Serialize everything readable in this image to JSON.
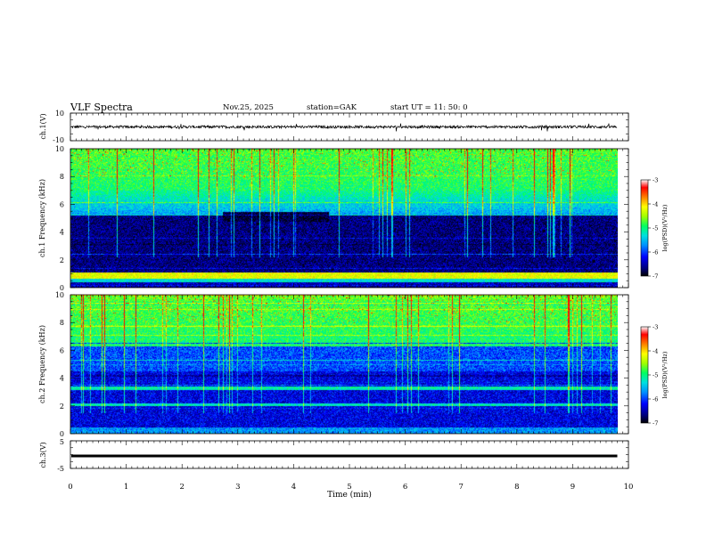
{
  "header": {
    "title": "VLF Spectra",
    "date": "Nov.25, 2025",
    "station": "station=GAK",
    "start_time": "start UT = 11: 50: 0"
  },
  "chart_data": [
    {
      "type": "line",
      "name": "ch1-waveform",
      "ylabel": "ch.1(V)",
      "ylim": [
        -10,
        10
      ],
      "yticks": [
        "10",
        "-10"
      ],
      "xlim": [
        0,
        10
      ],
      "baseline": 0,
      "noise_amplitude": 1.2
    },
    {
      "type": "heatmap",
      "name": "ch1-spectrogram",
      "ylabel": "ch.1 Frequency (kHz)",
      "ylim": [
        0,
        10
      ],
      "yticks": [
        "0",
        "2",
        "4",
        "6",
        "8",
        "10"
      ],
      "xlim": [
        0,
        9.8
      ],
      "colorbar": {
        "label": "log(PSD)(V²/Hz)",
        "range": [
          -7,
          -3
        ],
        "ticks": [
          "-3",
          "-4",
          "-5",
          "-6",
          "-7"
        ],
        "colors": [
          "#000000",
          "#00007a",
          "#0000ff",
          "#0090ff",
          "#00e0e0",
          "#00ff60",
          "#a0ff00",
          "#ffff00",
          "#ff8000",
          "#ff0000",
          "#ffffff"
        ]
      }
    },
    {
      "type": "heatmap",
      "name": "ch2-spectrogram",
      "ylabel": "ch.2 Frequency (kHz)",
      "ylim": [
        0,
        10
      ],
      "yticks": [
        "0",
        "2",
        "4",
        "6",
        "8",
        "10"
      ],
      "xlim": [
        0,
        9.8
      ],
      "colorbar": {
        "label": "log(PSD)(V²/Hz)",
        "range": [
          -7,
          -3
        ],
        "ticks": [
          "-3",
          "-4",
          "-5",
          "-6",
          "-7"
        ]
      }
    },
    {
      "type": "line",
      "name": "ch3-waveform",
      "ylabel": "ch.3(V)",
      "ylim": [
        -5,
        5
      ],
      "yticks": [
        "5",
        "0",
        "-5"
      ],
      "xlim": [
        0,
        10
      ],
      "baseline": -0.5
    }
  ],
  "xaxis": {
    "label": "Time (min)",
    "ticks": [
      "0",
      "1",
      "2",
      "3",
      "4",
      "5",
      "6",
      "7",
      "8",
      "9",
      "10"
    ],
    "range": [
      0,
      10
    ]
  }
}
